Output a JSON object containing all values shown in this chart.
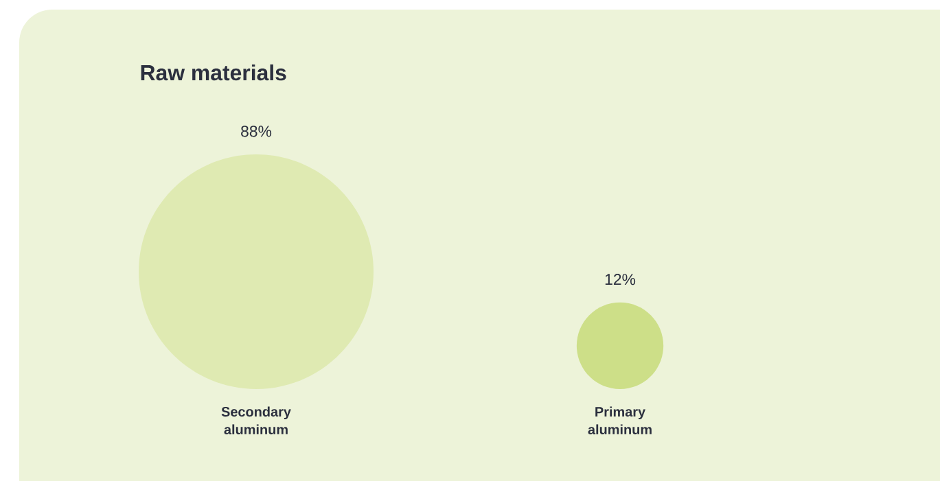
{
  "chart_data": {
    "type": "other",
    "title": "Raw materials",
    "categories": [
      "Secondary aluminum",
      "Primary aluminum"
    ],
    "values": [
      88,
      12
    ],
    "value_labels": [
      "88%",
      "12%"
    ],
    "colors": [
      "#dfeab2",
      "#cddf88"
    ]
  }
}
